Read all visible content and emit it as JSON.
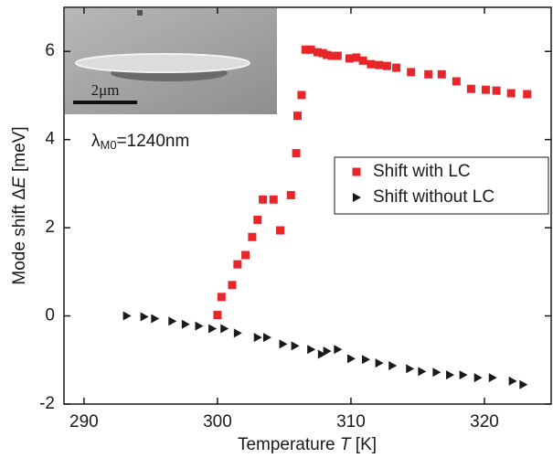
{
  "chart_data": {
    "type": "scatter",
    "xlabel": [
      "Temperature ",
      "T",
      " [K]"
    ],
    "ylabel": [
      "Mode shift Δ",
      "E",
      " [meV]"
    ],
    "annotation": [
      "λ",
      "M0",
      "=1240nm"
    ],
    "inset_scale_label": "2μm",
    "xlim": [
      288.5,
      325
    ],
    "xticks": [
      290,
      300,
      310,
      320
    ],
    "ylim": [
      -2,
      7
    ],
    "yticks": [
      -2,
      0,
      2,
      4,
      6
    ],
    "legend": "right",
    "series": [
      {
        "name": "Shift with LC",
        "color": "#e8262a",
        "marker": "square",
        "x": [
          300.0,
          300.3,
          301.1,
          301.5,
          302.1,
          302.6,
          303.0,
          303.4,
          304.2,
          304.7,
          305.5,
          305.9,
          306.0,
          306.3,
          306.6,
          307.0,
          307.5,
          307.9,
          308.2,
          308.6,
          309.0,
          309.9,
          310.4,
          310.9,
          311.5,
          312.1,
          312.7,
          313.4,
          314.5,
          315.8,
          316.8,
          317.9,
          319.0,
          320.1,
          320.9,
          322.0,
          323.2
        ],
        "values": [
          0.02,
          0.43,
          0.7,
          1.17,
          1.38,
          1.79,
          2.18,
          2.64,
          2.64,
          1.94,
          2.74,
          3.69,
          4.54,
          5.01,
          6.04,
          6.04,
          5.98,
          5.96,
          5.92,
          5.9,
          5.9,
          5.84,
          5.86,
          5.79,
          5.71,
          5.69,
          5.67,
          5.63,
          5.53,
          5.48,
          5.48,
          5.32,
          5.15,
          5.13,
          5.11,
          5.05,
          5.03
        ]
      },
      {
        "name": "Shift without LC",
        "color": "#1a1a1a",
        "marker": "triangle-right",
        "x": [
          293.2,
          294.5,
          295.3,
          296.6,
          297.6,
          298.6,
          299.6,
          300.5,
          301.5,
          303.0,
          303.7,
          304.9,
          305.8,
          307.0,
          307.8,
          308.2,
          309.0,
          310.0,
          311.1,
          312.1,
          313.1,
          314.4,
          315.3,
          316.4,
          317.4,
          318.4,
          319.5,
          320.6,
          322.1,
          322.9
        ],
        "values": [
          0,
          -0.02,
          -0.06,
          -0.12,
          -0.19,
          -0.23,
          -0.29,
          -0.29,
          -0.39,
          -0.49,
          -0.49,
          -0.64,
          -0.68,
          -0.76,
          -0.87,
          -0.8,
          -0.76,
          -0.97,
          -0.99,
          -1.07,
          -1.13,
          -1.2,
          -1.26,
          -1.28,
          -1.34,
          -1.34,
          -1.4,
          -1.4,
          -1.48,
          -1.56
        ]
      }
    ]
  }
}
